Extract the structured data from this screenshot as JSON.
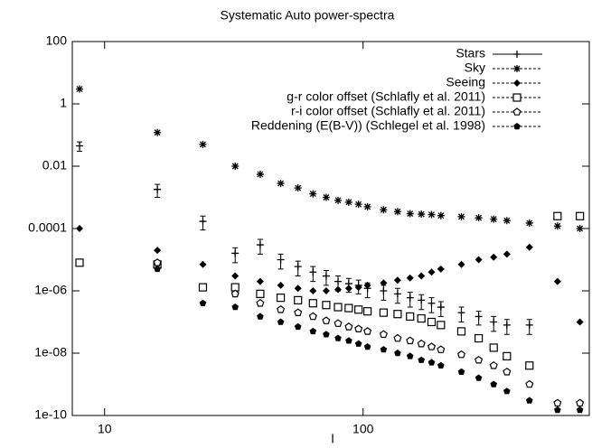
{
  "chart_data": {
    "type": "scatter",
    "title": "Systematic Auto power-spectra",
    "x_label": "l",
    "log_x": true,
    "log_y": true,
    "xlim": [
      7.5,
      750
    ],
    "ylim": [
      1e-10,
      100
    ],
    "xticks": [
      10,
      100
    ],
    "yticks": [
      100,
      1,
      0.01,
      0.0001,
      {
        "value": 1e-06,
        "label": "1e-06"
      },
      {
        "value": 1e-08,
        "label": "1e-08"
      },
      {
        "value": 1e-10,
        "label": "1e-10"
      }
    ],
    "legend": "top-right",
    "x": [
      8,
      16,
      24,
      32,
      40,
      48,
      56,
      64,
      72,
      80,
      88,
      96,
      104,
      120,
      136,
      152,
      168,
      184,
      200,
      240,
      280,
      320,
      360,
      440,
      565,
      690
    ],
    "series": [
      {
        "name": "Stars",
        "color": "#000000",
        "marker": "plus",
        "values": [
          0.045,
          0.0018,
          0.00017,
          1.6e-05,
          3e-05,
          1e-05,
          6e-06,
          4e-06,
          3e-06,
          2e-06,
          1.7e-06,
          1.5e-06,
          1.2e-06,
          1e-06,
          8e-07,
          6e-07,
          5e-07,
          4e-07,
          3e-07,
          2e-07,
          1.5e-07,
          1e-07,
          8e-08,
          8e-08,
          null,
          null
        ],
        "errors": [
          0.015,
          0.0008,
          8e-05,
          8e-06,
          1.5e-05,
          5e-06,
          3e-06,
          2e-06,
          1.5e-06,
          1e-06,
          8e-07,
          7e-07,
          6e-07,
          5e-07,
          4e-07,
          3e-07,
          2.5e-07,
          2e-07,
          1.5e-07,
          1e-07,
          7e-08,
          5e-08,
          4e-08,
          4e-08,
          null,
          null
        ]
      },
      {
        "name": "Sky",
        "color": "#000000",
        "marker": "star",
        "values": [
          3,
          0.12,
          0.05,
          0.01,
          0.0055,
          0.0028,
          0.002,
          0.0013,
          0.001,
          0.0008,
          0.0007,
          0.0006,
          0.0005,
          0.0004,
          0.00035,
          0.0003,
          0.00029,
          0.00028,
          0.00026,
          0.00024,
          0.00022,
          0.0002,
          0.00018,
          0.00015,
          0.00012,
          0.0001
        ]
      },
      {
        "name": "Seeing",
        "color": "#000000",
        "marker": "diamond",
        "values": [
          0.0001,
          2e-05,
          7e-06,
          3e-06,
          2e-06,
          1.5e-06,
          1.2e-06,
          1e-06,
          1e-06,
          1.1e-06,
          1.2e-06,
          1.3e-06,
          1.5e-06,
          1.8e-06,
          2.2e-06,
          2.6e-06,
          3e-06,
          4e-06,
          5e-06,
          7e-06,
          1e-05,
          1.2e-05,
          1.5e-05,
          2.5e-05,
          2e-06,
          1e-07
        ]
      },
      {
        "name": "g-r color offset (Schlafly et al. 2011)",
        "color": "#000000",
        "marker": "square",
        "values": [
          8e-06,
          7e-06,
          1.3e-06,
          1.3e-06,
          8e-07,
          6e-07,
          5e-07,
          4e-07,
          3.5e-07,
          3e-07,
          2.8e-07,
          2.5e-07,
          2.2e-07,
          2e-07,
          1.8e-07,
          1.5e-07,
          1.3e-07,
          1e-07,
          8e-08,
          5e-08,
          3e-08,
          1.5e-08,
          8e-09,
          4e-09,
          0.00025,
          0.00025
        ]
      },
      {
        "name": "r-i color offset (Schlafly et al. 2011)",
        "color": "#000000",
        "marker": "pentagon",
        "values": [
          null,
          8e-06,
          null,
          8e-07,
          4e-07,
          2.5e-07,
          2e-07,
          1.5e-07,
          1.1e-07,
          9e-08,
          7e-08,
          6e-08,
          5e-08,
          4e-08,
          3e-08,
          2.5e-08,
          2e-08,
          1.6e-08,
          1.3e-08,
          9e-09,
          6e-09,
          4e-09,
          2.5e-09,
          1e-09,
          2.5e-10,
          2.5e-10
        ]
      },
      {
        "name": "Reddening (E(B-V)) (Schlegel et al. 1998)",
        "color": "#000000",
        "marker": "pentagon-filled",
        "values": [
          null,
          5e-06,
          4e-07,
          3e-07,
          1.5e-07,
          1e-07,
          7e-08,
          5e-08,
          4e-08,
          3e-08,
          2.5e-08,
          2e-08,
          1.6e-08,
          1.3e-08,
          1e-08,
          8e-09,
          6e-09,
          5e-09,
          4e-09,
          2.5e-09,
          1.6e-09,
          1e-09,
          6e-10,
          3e-10,
          1.5e-10,
          1.5e-10
        ]
      }
    ]
  }
}
